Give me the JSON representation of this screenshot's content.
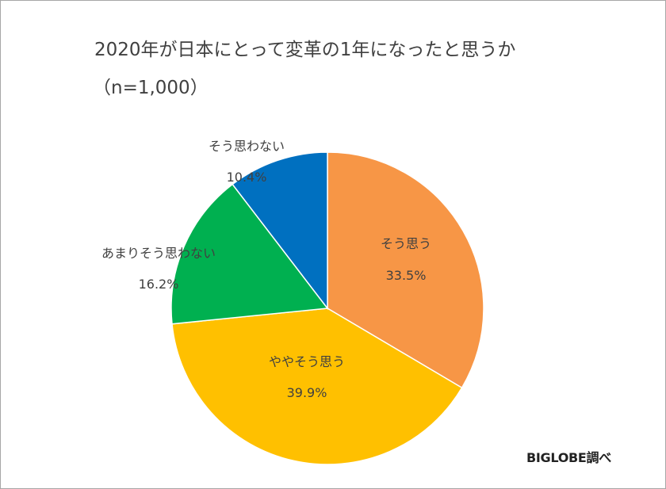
{
  "chart_data": {
    "type": "pie",
    "title": "2020年が日本にとって変革の1年になったと思うか",
    "subtitle": "（n=1,000）",
    "slices": [
      {
        "label": "そう思う",
        "value": 33.5,
        "value_label": "33.5%",
        "color": "#F79646"
      },
      {
        "label": "ややそう思う",
        "value": 39.9,
        "value_label": "39.9%",
        "color": "#FFC000"
      },
      {
        "label": "あまりそう思わない",
        "value": 16.2,
        "value_label": "16.2%",
        "color": "#00B050"
      },
      {
        "label": "そう思わない",
        "value": 10.4,
        "value_label": "10.4%",
        "color": "#0070C0"
      }
    ],
    "source": "BIGLOBE調べ"
  }
}
